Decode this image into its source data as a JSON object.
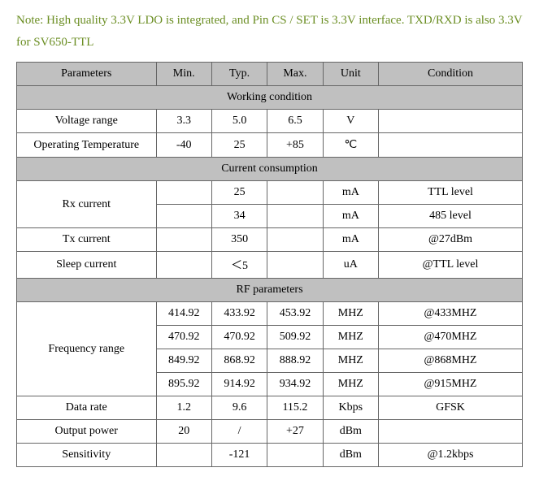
{
  "note": "Note: High quality 3.3V LDO is integrated, and Pin CS / SET is 3.3V interface. TXD/RXD is also 3.3V for SV650-TTL",
  "headers": {
    "param": "Parameters",
    "min": "Min.",
    "typ": "Typ.",
    "max": "Max.",
    "unit": "Unit",
    "condition": "Condition"
  },
  "sections": {
    "working": "Working condition",
    "current": "Current consumption",
    "rf": "RF parameters"
  },
  "rows": {
    "voltage": {
      "param": "Voltage range",
      "min": "3.3",
      "typ": "5.0",
      "max": "6.5",
      "unit": "V",
      "cond": ""
    },
    "optemp": {
      "param": "Operating Temperature",
      "min": "-40",
      "typ": "25",
      "max": "+85",
      "unit": "℃",
      "cond": ""
    },
    "rx1": {
      "param": "Rx current",
      "min": "",
      "typ": "25",
      "max": "",
      "unit": "mA",
      "cond": "TTL level"
    },
    "rx2": {
      "min": "",
      "typ": "34",
      "max": "",
      "unit": "mA",
      "cond": "485 level"
    },
    "tx": {
      "param": "Tx current",
      "min": "",
      "typ": "350",
      "max": "",
      "unit": "mA",
      "cond": "@27dBm"
    },
    "sleep": {
      "param": "Sleep current",
      "min": "",
      "typ": "＜5",
      "max": "",
      "unit": "uA",
      "cond": "@TTL level"
    },
    "freq1": {
      "param": "Frequency range",
      "min": "414.92",
      "typ": "433.92",
      "max": "453.92",
      "unit": "MHZ",
      "cond": "@433MHZ"
    },
    "freq2": {
      "min": "470.92",
      "typ": "470.92",
      "max": "509.92",
      "unit": "MHZ",
      "cond": "@470MHZ"
    },
    "freq3": {
      "min": "849.92",
      "typ": "868.92",
      "max": "888.92",
      "unit": "MHZ",
      "cond": "@868MHZ"
    },
    "freq4": {
      "min": "895.92",
      "typ": "914.92",
      "max": "934.92",
      "unit": "MHZ",
      "cond": "@915MHZ"
    },
    "datarate": {
      "param": "Data rate",
      "min": "1.2",
      "typ": "9.6",
      "max": "115.2",
      "unit": "Kbps",
      "cond": "GFSK"
    },
    "output": {
      "param": "Output power",
      "min": "20",
      "typ": "/",
      "max": "+27",
      "unit": "dBm",
      "cond": ""
    },
    "sens": {
      "param": "Sensitivity",
      "min": "",
      "typ": "-121",
      "max": "",
      "unit": "dBm",
      "cond": "@1.2kbps"
    }
  },
  "style": {
    "note_color": "#6b8e23",
    "header_bg": "#c0c0c0",
    "border_color": "#666666",
    "text_color": "#000000",
    "background": "#ffffff",
    "font_family": "Times New Roman",
    "note_fontsize": 15,
    "cell_fontsize": 14
  }
}
